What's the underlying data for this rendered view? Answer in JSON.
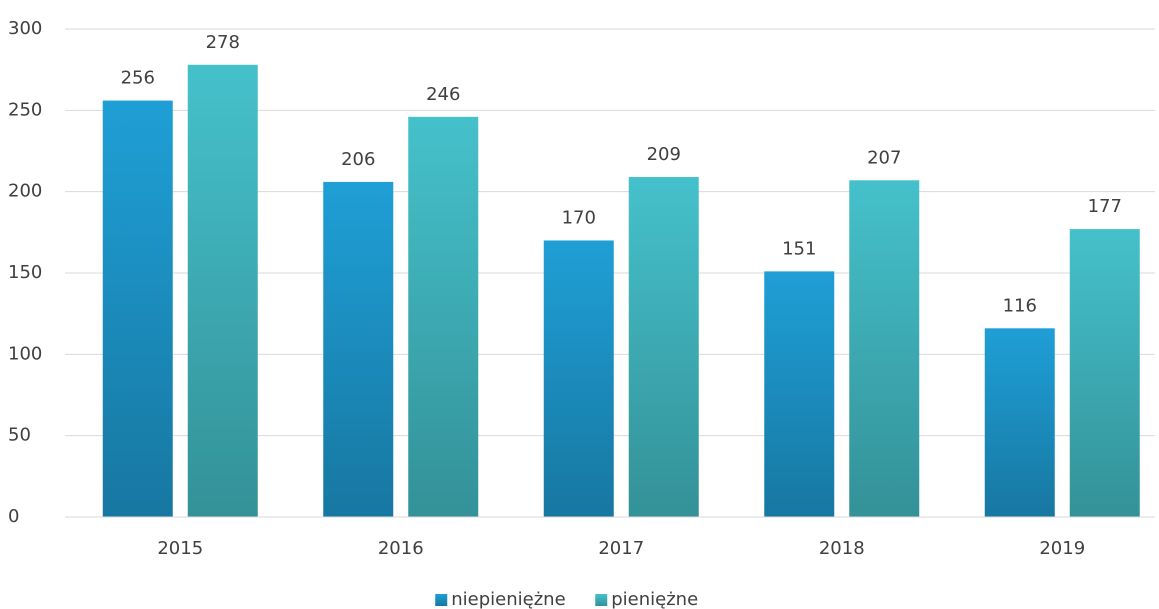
{
  "chart_data": {
    "type": "bar",
    "categories": [
      "2015",
      "2016",
      "2017",
      "2018",
      "2019"
    ],
    "series": [
      {
        "name": "niepieniężne",
        "color": "#1f9fd6",
        "values": [
          256,
          206,
          170,
          151,
          116
        ]
      },
      {
        "name": "pieniężne",
        "color": "#45c1cb",
        "values": [
          278,
          246,
          209,
          207,
          177
        ]
      }
    ],
    "ylim": [
      0,
      300
    ],
    "yticks": [
      0,
      50,
      100,
      150,
      200,
      250,
      300
    ],
    "grid": true,
    "legend": "bottom"
  }
}
